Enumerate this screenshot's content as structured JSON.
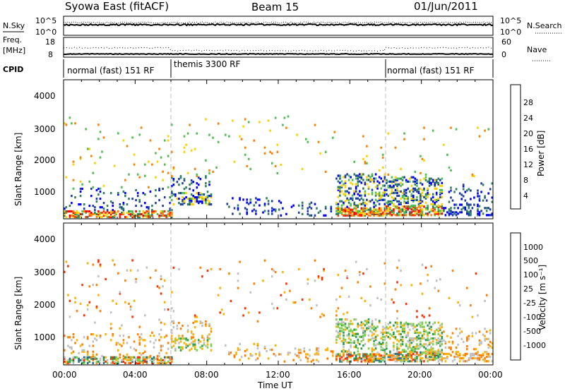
{
  "header": {
    "station": "Syowa East (fitACF)",
    "beam": "Beam 15",
    "date": "01/Jun/2011"
  },
  "colors": {
    "power_scale": [
      "#0000ff",
      "#1f3fa0",
      "#2f7f5f",
      "#4fbf4f",
      "#ffd000",
      "#ff8000",
      "#ff3000",
      "#ff0000"
    ],
    "velocity_scale": [
      "#1f3fa0",
      "#2f6f7f",
      "#2f9f4f",
      "#7fcf4f",
      "#c0c0c0",
      "#ffb000",
      "#ff8000",
      "#ff3000",
      "#ff0000"
    ]
  },
  "chart_data": [
    {
      "type": "line",
      "panel": "nsky-nsearch",
      "left_label": "N.Sky",
      "right_label": "N.Search",
      "left_ticks": [
        "10^5",
        "10^0"
      ],
      "right_ticks": [
        "10^5",
        "10^0"
      ],
      "note": "noise levels, values near top of axis for whole day"
    },
    {
      "type": "line",
      "panel": "freq-nave",
      "left_label": "Freq.",
      "left_unit": "[MHz]",
      "right_label": "Nave",
      "left_ticks": [
        "18",
        "8"
      ],
      "right_ticks": [
        "60",
        "0"
      ]
    },
    {
      "type": "table",
      "panel": "cpid",
      "label": "CPID",
      "segments": [
        {
          "start": 0,
          "end": 6,
          "name": "normal (fast) 151 RF"
        },
        {
          "start": 6,
          "end": 18,
          "name": "themis 3300 RF"
        },
        {
          "start": 18,
          "end": 24,
          "name": "normal (fast) 151 RF"
        }
      ]
    },
    {
      "type": "heatmap",
      "panel": "power",
      "ylabel": "Slant Range [km]",
      "yticks": [
        "4000",
        "3000",
        "2000",
        "1000"
      ],
      "yrange": [
        180,
        4590
      ],
      "colorbar_label": "Power [dB]",
      "colorbar_ticks": [
        "28",
        "24",
        "20",
        "16",
        "12",
        "8",
        "4"
      ]
    },
    {
      "type": "heatmap",
      "panel": "velocity",
      "ylabel": "Slant Range [km]",
      "yticks": [
        "4000",
        "3000",
        "2000",
        "1000"
      ],
      "yrange": [
        180,
        4590
      ],
      "colorbar_label": "Velocity [m s⁻¹]",
      "colorbar_ticks": [
        "1000",
        "500",
        "100",
        "25",
        "-25",
        "-100",
        "-500",
        "-1000"
      ]
    }
  ],
  "xaxis": {
    "label": "Time UT",
    "ticks": [
      "00:00",
      "04:00",
      "08:00",
      "12:00",
      "16:00",
      "20:00",
      "00:00"
    ],
    "range": [
      0,
      24
    ]
  }
}
